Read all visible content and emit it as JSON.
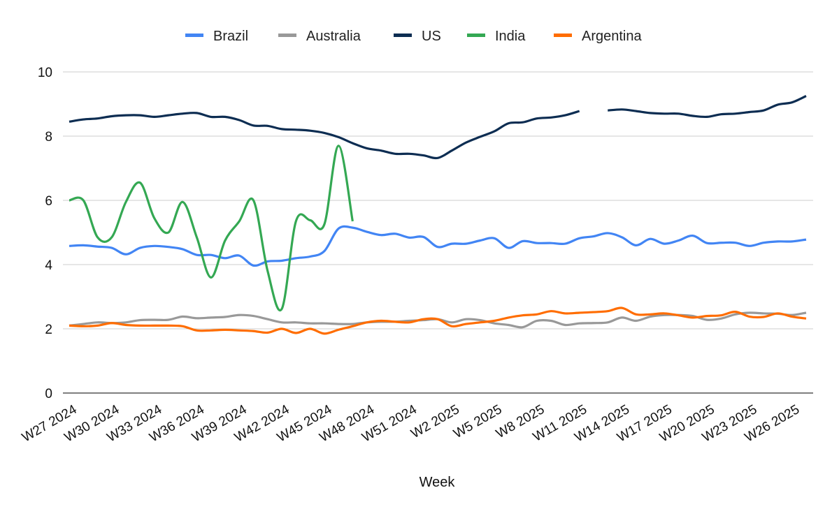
{
  "chart_data": {
    "type": "line",
    "xlabel": "Week",
    "ylabel": "",
    "ylim": [
      0,
      10
    ],
    "yticks": [
      0,
      2,
      4,
      6,
      8,
      10
    ],
    "grid": "horizontal",
    "legend_position": "top",
    "x": [
      "W27 2024",
      "W28 2024",
      "W29 2024",
      "W30 2024",
      "W31 2024",
      "W32 2024",
      "W33 2024",
      "W34 2024",
      "W35 2024",
      "W36 2024",
      "W37 2024",
      "W38 2024",
      "W39 2024",
      "W40 2024",
      "W41 2024",
      "W42 2024",
      "W43 2024",
      "W44 2024",
      "W45 2024",
      "W46 2024",
      "W47 2024",
      "W48 2024",
      "W49 2024",
      "W50 2024",
      "W51 2024",
      "W52 2024",
      "W1 2025",
      "W2 2025",
      "W3 2025",
      "W4 2025",
      "W5 2025",
      "W6 2025",
      "W7 2025",
      "W8 2025",
      "W9 2025",
      "W10 2025",
      "W11 2025",
      "W12 2025",
      "W13 2025",
      "W14 2025",
      "W15 2025",
      "W16 2025",
      "W17 2025",
      "W18 2025",
      "W19 2025",
      "W20 2025",
      "W21 2025",
      "W22 2025",
      "W23 2025",
      "W24 2025",
      "W25 2025",
      "W26 2025",
      "W27 2025"
    ],
    "x_tick_labels": [
      "W27 2024",
      "W30 2024",
      "W33 2024",
      "W36 2024",
      "W39 2024",
      "W42 2024",
      "W45 2024",
      "W48 2024",
      "W51 2024",
      "W2 2025",
      "W5 2025",
      "W8 2025",
      "W11 2025",
      "W14 2025",
      "W17 2025",
      "W20 2025",
      "W23 2025",
      "W26 2025"
    ],
    "series": [
      {
        "name": "Brazil",
        "color": "#4285f4",
        "values": [
          4.58,
          4.6,
          4.56,
          4.52,
          4.32,
          4.52,
          4.58,
          4.55,
          4.48,
          4.3,
          4.3,
          4.2,
          4.28,
          3.97,
          4.1,
          4.12,
          4.2,
          4.25,
          4.42,
          5.12,
          5.15,
          5.02,
          4.92,
          4.96,
          4.84,
          4.86,
          4.55,
          4.65,
          4.65,
          4.75,
          4.82,
          4.52,
          4.73,
          4.67,
          4.67,
          4.65,
          4.82,
          4.88,
          4.98,
          4.85,
          4.6,
          4.8,
          4.65,
          4.75,
          4.9,
          4.67,
          4.68,
          4.68,
          4.58,
          4.68,
          4.72,
          4.72,
          4.78
        ]
      },
      {
        "name": "Australia",
        "color": "#999999",
        "values": [
          2.1,
          2.15,
          2.2,
          2.18,
          2.2,
          2.27,
          2.28,
          2.28,
          2.38,
          2.33,
          2.35,
          2.37,
          2.43,
          2.4,
          2.3,
          2.2,
          2.2,
          2.17,
          2.17,
          2.15,
          2.15,
          2.2,
          2.22,
          2.22,
          2.25,
          2.27,
          2.3,
          2.2,
          2.3,
          2.27,
          2.17,
          2.12,
          2.05,
          2.25,
          2.25,
          2.12,
          2.17,
          2.18,
          2.2,
          2.35,
          2.25,
          2.38,
          2.43,
          2.43,
          2.4,
          2.28,
          2.32,
          2.45,
          2.5,
          2.48,
          2.47,
          2.43,
          2.5
        ]
      },
      {
        "name": "US",
        "color": "#0d2d52",
        "values": [
          8.45,
          8.52,
          8.55,
          8.62,
          8.65,
          8.65,
          8.6,
          8.65,
          8.7,
          8.72,
          8.6,
          8.6,
          8.5,
          8.33,
          8.32,
          8.22,
          8.2,
          8.17,
          8.1,
          7.97,
          7.78,
          7.62,
          7.55,
          7.45,
          7.45,
          7.4,
          7.32,
          7.55,
          7.8,
          7.98,
          8.15,
          8.4,
          8.43,
          8.55,
          8.58,
          8.65,
          8.78,
          null,
          8.8,
          8.83,
          8.78,
          8.72,
          8.7,
          8.7,
          8.63,
          8.6,
          8.68,
          8.7,
          8.75,
          8.8,
          8.98,
          9.05,
          9.25
        ]
      },
      {
        "name": "India",
        "color": "#34a853",
        "values": [
          6.0,
          6.0,
          4.85,
          4.85,
          5.95,
          6.55,
          5.45,
          5.0,
          5.95,
          4.85,
          3.6,
          4.75,
          5.35,
          6.0,
          3.8,
          2.62,
          5.35,
          5.38,
          5.25,
          7.7,
          5.35,
          null,
          null,
          null,
          null,
          null,
          null,
          null,
          null,
          null,
          null,
          null,
          null,
          null,
          null,
          null,
          null,
          null,
          null,
          null,
          null,
          null,
          null,
          null,
          null,
          null,
          null,
          null,
          null,
          null,
          null,
          null,
          null
        ]
      },
      {
        "name": "Argentina",
        "color": "#ff6d01",
        "values": [
          2.1,
          2.08,
          2.1,
          2.18,
          2.12,
          2.1,
          2.1,
          2.1,
          2.08,
          1.95,
          1.95,
          1.97,
          1.95,
          1.93,
          1.88,
          2.0,
          1.87,
          2.0,
          1.85,
          1.97,
          2.08,
          2.2,
          2.25,
          2.22,
          2.2,
          2.3,
          2.3,
          2.08,
          2.15,
          2.2,
          2.25,
          2.35,
          2.42,
          2.45,
          2.55,
          2.48,
          2.5,
          2.52,
          2.55,
          2.65,
          2.45,
          2.45,
          2.48,
          2.42,
          2.35,
          2.4,
          2.42,
          2.53,
          2.38,
          2.37,
          2.48,
          2.38,
          2.32
        ]
      }
    ]
  }
}
